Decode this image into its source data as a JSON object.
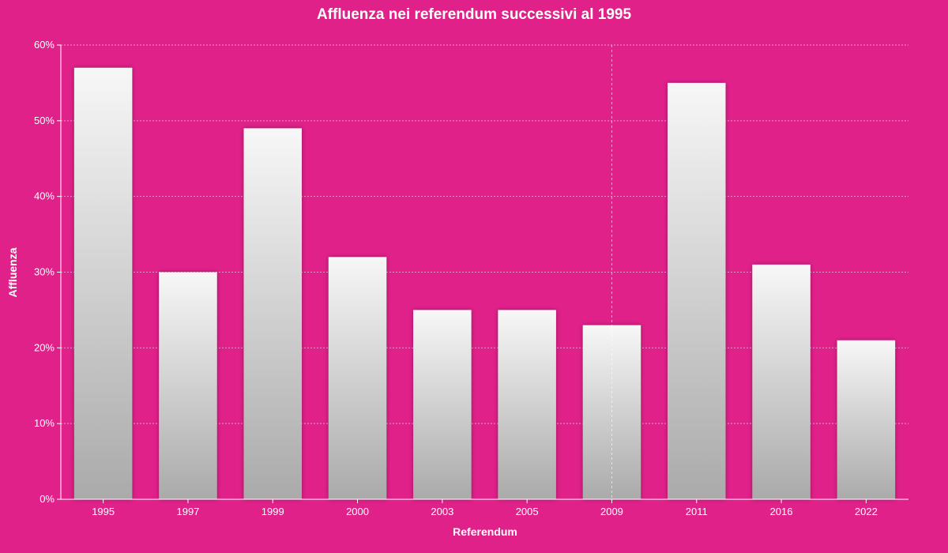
{
  "colors": {
    "background": "#e0218a",
    "bar_top": "#f7f7f7",
    "bar_bottom": "#aaaaaa",
    "text": "#ffffff"
  },
  "chart_data": {
    "type": "bar",
    "title": "Affluenza nei referendum successivi al 1995",
    "xlabel": "Referendum",
    "ylabel": "Affluenza",
    "categories": [
      "1995",
      "1997",
      "1999",
      "2000",
      "2003",
      "2005",
      "2009",
      "2011",
      "2016",
      "2022"
    ],
    "values": [
      57,
      30,
      49,
      32,
      25,
      25,
      23,
      55,
      31,
      21
    ],
    "value_unit": "%",
    "ylim": [
      0,
      60
    ],
    "yticks": [
      0,
      10,
      20,
      30,
      40,
      50,
      60
    ],
    "ytick_labels": [
      "0%",
      "10%",
      "20%",
      "30%",
      "40%",
      "50%",
      "60%"
    ],
    "grid": true,
    "highlighted_category": "2009",
    "legend": "none"
  }
}
